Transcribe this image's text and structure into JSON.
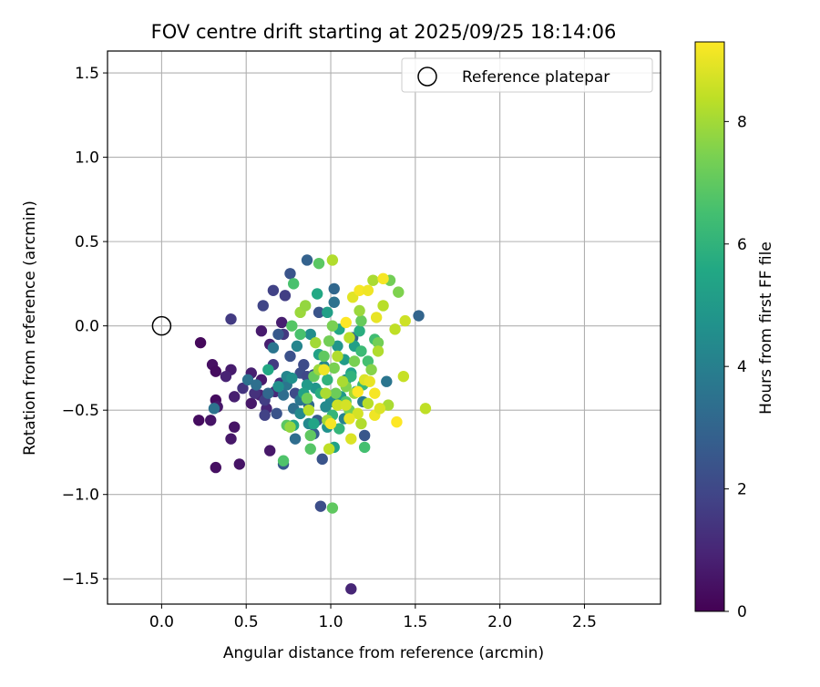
{
  "chart_data": {
    "type": "scatter",
    "title": "FOV centre drift starting at 2025/09/25 18:14:06",
    "xlabel": "Angular distance from reference (arcmin)",
    "ylabel": "Rotation from reference (arcmin)",
    "xlim": [
      -0.32,
      2.95
    ],
    "ylim": [
      -1.65,
      1.63
    ],
    "xticks": [
      0.0,
      0.5,
      1.0,
      1.5,
      2.0,
      2.5
    ],
    "xtick_labels": [
      "0.0",
      "0.5",
      "1.0",
      "1.5",
      "2.0",
      "2.5"
    ],
    "yticks": [
      1.5,
      1.0,
      0.5,
      0.0,
      -0.5,
      -1.0,
      -1.5
    ],
    "ytick_labels": [
      "1.5",
      "1.0",
      "0.5",
      "0.0",
      "−0.5",
      "−1.0",
      "−1.5"
    ],
    "grid": true,
    "legend": {
      "position": "top-right",
      "label": "Reference platepar"
    },
    "reference_point": {
      "x": 0.0,
      "y": 0.0
    },
    "colorbar": {
      "label": "Hours from first FF file",
      "range": [
        0,
        9.3
      ],
      "ticks": [
        0,
        2,
        4,
        6,
        8
      ],
      "tick_labels": [
        "0",
        "2",
        "4",
        "6",
        "8"
      ],
      "colormap": "viridis"
    },
    "points": [
      [
        0.23,
        -0.1,
        0.2
      ],
      [
        0.3,
        -0.23,
        0.4
      ],
      [
        0.32,
        -0.27,
        0.3
      ],
      [
        0.22,
        -0.56,
        0.3
      ],
      [
        0.29,
        -0.56,
        0.5
      ],
      [
        0.32,
        -0.44,
        0.3
      ],
      [
        0.33,
        -0.48,
        0.6
      ],
      [
        0.32,
        -0.84,
        0.4
      ],
      [
        0.43,
        -0.6,
        0.5
      ],
      [
        0.41,
        -0.67,
        0.6
      ],
      [
        0.46,
        -0.82,
        0.5
      ],
      [
        0.41,
        -0.26,
        0.7
      ],
      [
        0.43,
        -0.42,
        0.8
      ],
      [
        0.38,
        -0.3,
        0.9
      ],
      [
        0.53,
        -0.28,
        0.8
      ],
      [
        0.53,
        -0.46,
        0.6
      ],
      [
        0.59,
        -0.32,
        0.7
      ],
      [
        0.58,
        -0.41,
        0.9
      ],
      [
        0.62,
        -0.49,
        1.0
      ],
      [
        0.59,
        -0.03,
        0.7
      ],
      [
        0.64,
        -0.11,
        0.8
      ],
      [
        0.64,
        -0.74,
        0.6
      ],
      [
        0.71,
        0.02,
        0.8
      ],
      [
        0.67,
        -0.39,
        1.1
      ],
      [
        0.7,
        -0.34,
        1.2
      ],
      [
        0.55,
        -0.4,
        1.3
      ],
      [
        0.48,
        -0.37,
        1.4
      ],
      [
        0.41,
        0.04,
        1.6
      ],
      [
        0.6,
        0.12,
        1.9
      ],
      [
        0.61,
        -0.44,
        1.7
      ],
      [
        0.61,
        -0.53,
        1.8
      ],
      [
        0.66,
        -0.23,
        1.6
      ],
      [
        0.72,
        -0.05,
        1.5
      ],
      [
        0.66,
        0.21,
        1.8
      ],
      [
        0.73,
        0.18,
        1.7
      ],
      [
        0.76,
        0.31,
        2.4
      ],
      [
        0.69,
        -0.05,
        2.6
      ],
      [
        0.68,
        -0.52,
        2.4
      ],
      [
        0.72,
        -0.82,
        2.6
      ],
      [
        0.76,
        -0.18,
        2.3
      ],
      [
        0.79,
        -0.4,
        2.1
      ],
      [
        0.82,
        -0.28,
        2.2
      ],
      [
        0.84,
        -0.23,
        2.1
      ],
      [
        0.86,
        -0.3,
        2.0
      ],
      [
        0.9,
        -0.29,
        2.3
      ],
      [
        0.86,
        0.39,
        2.9
      ],
      [
        0.93,
        0.08,
        2.4
      ],
      [
        0.94,
        -1.07,
        2.2
      ],
      [
        0.95,
        -0.79,
        2.4
      ],
      [
        0.9,
        -0.64,
        2.8
      ],
      [
        0.92,
        -0.56,
        2.7
      ],
      [
        0.87,
        -0.47,
        3.2
      ],
      [
        0.79,
        -0.67,
        3.3
      ],
      [
        0.74,
        -0.35,
        3.6
      ],
      [
        0.72,
        -0.41,
        3.3
      ],
      [
        0.66,
        -0.13,
        3.6
      ],
      [
        0.51,
        -0.32,
        3.5
      ],
      [
        0.56,
        -0.35,
        3.4
      ],
      [
        0.31,
        -0.49,
        3.5
      ],
      [
        0.63,
        -0.4,
        3.1
      ],
      [
        0.78,
        -0.49,
        3.4
      ],
      [
        0.82,
        -0.44,
        3.7
      ],
      [
        1.02,
        0.22,
        3.1
      ],
      [
        1.02,
        0.14,
        3.5
      ],
      [
        1.13,
        -0.07,
        3.0
      ],
      [
        1.19,
        -0.45,
        3.8
      ],
      [
        1.2,
        -0.65,
        2.5
      ],
      [
        1.33,
        -0.33,
        3.6
      ],
      [
        1.52,
        0.06,
        3.0
      ],
      [
        0.74,
        -0.3,
        4.2
      ],
      [
        0.77,
        -0.31,
        4.6
      ],
      [
        0.8,
        -0.12,
        4.2
      ],
      [
        0.88,
        -0.05,
        4.5
      ],
      [
        0.91,
        -0.37,
        4.8
      ],
      [
        0.96,
        -0.24,
        4.3
      ],
      [
        0.98,
        -0.6,
        4.7
      ],
      [
        1.0,
        -0.45,
        4.4
      ],
      [
        1.04,
        -0.12,
        4.8
      ],
      [
        1.08,
        -0.55,
        4.1
      ],
      [
        1.09,
        -0.32,
        4.5
      ],
      [
        0.97,
        -0.48,
        4.4
      ],
      [
        0.87,
        -0.58,
        4.3
      ],
      [
        0.82,
        -0.52,
        4.4
      ],
      [
        0.69,
        -0.36,
        4.6
      ],
      [
        0.86,
        -0.35,
        5.0
      ],
      [
        0.93,
        -0.17,
        5.3
      ],
      [
        0.98,
        0.08,
        5.2
      ],
      [
        1.05,
        -0.02,
        5.5
      ],
      [
        1.08,
        -0.2,
        5.1
      ],
      [
        1.12,
        -0.28,
        5.4
      ],
      [
        1.14,
        -0.12,
        5.2
      ],
      [
        1.15,
        -0.39,
        5.6
      ],
      [
        1.02,
        -0.72,
        5.3
      ],
      [
        1.06,
        -0.42,
        5.0
      ],
      [
        0.9,
        -0.58,
        5.4
      ],
      [
        0.78,
        -0.59,
        5.5
      ],
      [
        0.84,
        -0.4,
        5.3
      ],
      [
        0.63,
        -0.26,
        5.6
      ],
      [
        0.92,
        0.19,
        5.6
      ],
      [
        0.94,
        -0.4,
        5.8
      ],
      [
        0.98,
        -0.32,
        6.0
      ],
      [
        1.01,
        -0.53,
        6.1
      ],
      [
        1.05,
        -0.61,
        6.1
      ],
      [
        1.12,
        -0.3,
        6.0
      ],
      [
        1.17,
        -0.03,
        5.8
      ],
      [
        1.18,
        -0.15,
        6.3
      ],
      [
        1.19,
        -0.35,
        6.2
      ],
      [
        1.22,
        -0.21,
        6.5
      ],
      [
        1.26,
        -0.08,
        6.4
      ],
      [
        1.2,
        -0.72,
        6.5
      ],
      [
        1.09,
        -0.45,
        6.7
      ],
      [
        0.93,
        0.37,
        6.9
      ],
      [
        0.82,
        -0.05,
        6.6
      ],
      [
        0.77,
        0.0,
        6.8
      ],
      [
        0.78,
        0.25,
        6.6
      ],
      [
        0.74,
        -0.59,
        6.9
      ],
      [
        0.72,
        -0.8,
        6.7
      ],
      [
        0.88,
        -0.73,
        6.8
      ],
      [
        0.88,
        -0.65,
        7.0
      ],
      [
        0.86,
        -0.43,
        7.2
      ],
      [
        0.9,
        -0.3,
        7.1
      ],
      [
        0.96,
        -0.18,
        7.0
      ],
      [
        0.99,
        -0.09,
        7.3
      ],
      [
        1.02,
        -0.25,
        7.4
      ],
      [
        1.03,
        -0.4,
        7.2
      ],
      [
        1.09,
        -0.36,
        7.5
      ],
      [
        1.11,
        -0.5,
        7.3
      ],
      [
        1.14,
        -0.21,
        7.4
      ],
      [
        1.18,
        0.03,
        7.1
      ],
      [
        1.24,
        -0.26,
        7.6
      ],
      [
        1.28,
        -0.1,
        7.3
      ],
      [
        1.01,
        -1.08,
        7.0
      ],
      [
        1.35,
        0.27,
        7.3
      ],
      [
        1.4,
        0.2,
        7.5
      ],
      [
        1.01,
        0.0,
        7.4
      ],
      [
        0.76,
        -0.6,
        7.8
      ],
      [
        0.82,
        0.08,
        7.9
      ],
      [
        0.85,
        0.12,
        7.8
      ],
      [
        0.91,
        -0.1,
        8.0
      ],
      [
        0.93,
        -0.26,
        7.9
      ],
      [
        0.97,
        -0.4,
        8.1
      ],
      [
        0.98,
        -0.56,
        8.0
      ],
      [
        1.04,
        -0.18,
        8.2
      ],
      [
        1.07,
        -0.33,
        8.1
      ],
      [
        1.11,
        -0.07,
        8.3
      ],
      [
        1.14,
        -0.4,
        8.0
      ],
      [
        1.17,
        0.09,
        7.9
      ],
      [
        1.18,
        -0.58,
        8.2
      ],
      [
        1.22,
        -0.46,
        8.3
      ],
      [
        1.25,
        0.27,
        8.1
      ],
      [
        1.28,
        -0.15,
        8.2
      ],
      [
        1.31,
        0.12,
        8.3
      ],
      [
        1.34,
        -0.47,
        8.1
      ],
      [
        1.38,
        -0.02,
        8.4
      ],
      [
        1.43,
        -0.3,
        8.5
      ],
      [
        1.44,
        0.03,
        8.6
      ],
      [
        1.56,
        -0.49,
        8.4
      ],
      [
        1.01,
        0.39,
        8.2
      ],
      [
        0.87,
        -0.5,
        8.3
      ],
      [
        0.99,
        -0.73,
        8.4
      ],
      [
        1.04,
        -0.47,
        8.6
      ],
      [
        1.09,
        -0.47,
        8.7
      ],
      [
        1.12,
        -0.67,
        8.8
      ],
      [
        1.13,
        0.17,
        8.9
      ],
      [
        1.16,
        -0.52,
        8.7
      ],
      [
        1.2,
        -0.32,
        8.8
      ],
      [
        1.23,
        -0.33,
        9.0
      ],
      [
        1.26,
        -0.53,
        9.1
      ],
      [
        1.29,
        -0.49,
        8.8
      ],
      [
        1.17,
        0.21,
        9.2
      ],
      [
        1.22,
        0.21,
        9.1
      ],
      [
        1.27,
        0.05,
        9.0
      ],
      [
        1.31,
        0.28,
        9.2
      ],
      [
        1.09,
        0.02,
        9.3
      ],
      [
        0.96,
        -0.26,
        9.1
      ],
      [
        1.0,
        -0.58,
        9.2
      ],
      [
        1.11,
        -0.55,
        9.0
      ],
      [
        1.16,
        -0.39,
        9.3
      ],
      [
        1.26,
        -0.4,
        9.2
      ],
      [
        1.39,
        -0.57,
        9.3
      ],
      [
        1.12,
        -1.56,
        1.0
      ]
    ]
  }
}
